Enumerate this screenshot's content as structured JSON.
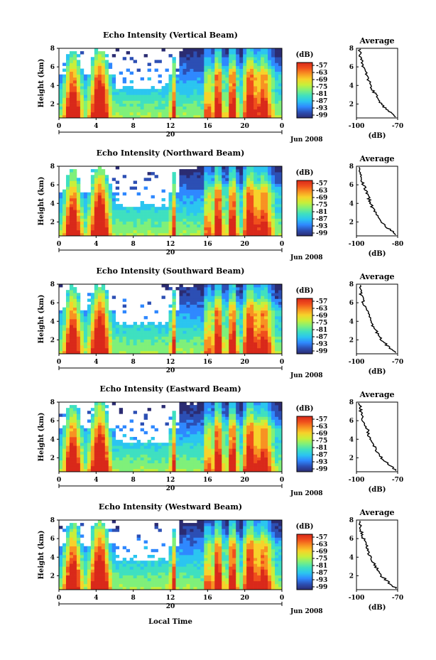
{
  "figure": {
    "xlabel": "Local Time",
    "ylabel": "Height (km)",
    "date_label": "Jun 2008",
    "day_label": "20",
    "colorbar_unit": "(dB)",
    "average_title": "Average",
    "average_xlabel": "(dB)"
  },
  "colormap": [
    "#2b2c72",
    "#2c4fb4",
    "#2f88ff",
    "#2bc5f0",
    "#3fe0c0",
    "#7ff07a",
    "#c8ef3a",
    "#f7d22a",
    "#f89222",
    "#f04f1c",
    "#d9291a"
  ],
  "chart_data": [
    {
      "type": "heatmap",
      "title": "Echo Intensity (Vertical Beam)",
      "xlabel": "Local Time",
      "ylabel": "Height (km)",
      "x_ticks": [
        "0",
        "4",
        "8",
        "12",
        "16",
        "20",
        "0"
      ],
      "xlim": [
        0,
        24
      ],
      "y_ticks": [
        "2",
        "4",
        "6",
        "8"
      ],
      "ylim": [
        0.5,
        8
      ],
      "colorbar_label": "(dB)",
      "colorbar_ticks": [
        "-57",
        "-63",
        "-69",
        "-75",
        "-81",
        "-87",
        "-93",
        "-99"
      ],
      "clim": [
        -99,
        -57
      ],
      "average_profile": {
        "title": "Average",
        "xlabel": "(dB)",
        "x_ticks": [
          "-100",
          "-70"
        ],
        "xlim": [
          -100,
          -70
        ],
        "y_ticks": [
          "2",
          "4",
          "6",
          "8"
        ],
        "ylim": [
          0.5,
          8
        ],
        "height": [
          0.6,
          1.2,
          2,
          3,
          4,
          5,
          6,
          7,
          8
        ],
        "db": [
          -71,
          -76,
          -82,
          -86,
          -90,
          -92,
          -95,
          -97,
          -98
        ]
      }
    },
    {
      "type": "heatmap",
      "title": "Echo Intensity (Northward Beam)",
      "xlabel": "Local Time",
      "ylabel": "Height (km)",
      "x_ticks": [
        "0",
        "4",
        "8",
        "12",
        "16",
        "20",
        "0"
      ],
      "xlim": [
        0,
        24
      ],
      "y_ticks": [
        "2",
        "4",
        "6",
        "8"
      ],
      "ylim": [
        0.5,
        8
      ],
      "colorbar_label": "(dB)",
      "colorbar_ticks": [
        "-57",
        "-63",
        "-69",
        "-75",
        "-81",
        "-87",
        "-93",
        "-99"
      ],
      "clim": [
        -99,
        -57
      ],
      "average_profile": {
        "title": "Average",
        "xlabel": "(dB)",
        "x_ticks": [
          "-100",
          "-80"
        ],
        "xlim": [
          -100,
          -70
        ],
        "y_ticks": [
          "2",
          "4",
          "6",
          "8"
        ],
        "ylim": [
          0.5,
          8
        ],
        "height": [
          0.6,
          1.2,
          2,
          3,
          4,
          5,
          6,
          7,
          8
        ],
        "db": [
          -71,
          -76,
          -82,
          -86,
          -90,
          -92,
          -95,
          -97,
          -98
        ]
      }
    },
    {
      "type": "heatmap",
      "title": "Echo Intensity (Southward Beam)",
      "xlabel": "Local Time",
      "ylabel": "Height (km)",
      "x_ticks": [
        "0",
        "4",
        "8",
        "12",
        "16",
        "20",
        "0"
      ],
      "xlim": [
        0,
        24
      ],
      "y_ticks": [
        "2",
        "4",
        "6",
        "8"
      ],
      "ylim": [
        0.5,
        8
      ],
      "colorbar_label": "(dB)",
      "colorbar_ticks": [
        "-57",
        "-63",
        "-69",
        "-75",
        "-81",
        "-87",
        "-93",
        "-99"
      ],
      "clim": [
        -99,
        -57
      ],
      "average_profile": {
        "title": "Average",
        "xlabel": "(dB)",
        "x_ticks": [
          "-100",
          "-70"
        ],
        "xlim": [
          -100,
          -70
        ],
        "y_ticks": [
          "2",
          "4",
          "6",
          "8"
        ],
        "ylim": [
          0.5,
          8
        ],
        "height": [
          0.6,
          1.2,
          2,
          3,
          4,
          5,
          6,
          7,
          8
        ],
        "db": [
          -71,
          -76,
          -82,
          -86,
          -90,
          -92,
          -95,
          -97,
          -98
        ]
      }
    },
    {
      "type": "heatmap",
      "title": "Echo Intensity (Eastward Beam)",
      "xlabel": "Local Time",
      "ylabel": "Height (km)",
      "x_ticks": [
        "0",
        "4",
        "8",
        "12",
        "16",
        "20",
        "0"
      ],
      "xlim": [
        0,
        24
      ],
      "y_ticks": [
        "2",
        "4",
        "6",
        "8"
      ],
      "ylim": [
        0.5,
        8
      ],
      "colorbar_label": "(dB)",
      "colorbar_ticks": [
        "-57",
        "-63",
        "-69",
        "-75",
        "-81",
        "-87",
        "-93",
        "-99"
      ],
      "clim": [
        -99,
        -57
      ],
      "average_profile": {
        "title": "Average",
        "xlabel": "(dB)",
        "x_ticks": [
          "-100",
          "-70"
        ],
        "xlim": [
          -100,
          -70
        ],
        "y_ticks": [
          "2",
          "4",
          "6",
          "8"
        ],
        "ylim": [
          0.5,
          8
        ],
        "height": [
          0.6,
          1.2,
          2,
          3,
          4,
          5,
          6,
          7,
          8
        ],
        "db": [
          -71,
          -76,
          -82,
          -86,
          -90,
          -92,
          -95,
          -97,
          -98
        ]
      }
    },
    {
      "type": "heatmap",
      "title": "Echo Intensity (Westward Beam)",
      "xlabel": "Local Time",
      "ylabel": "Height (km)",
      "x_ticks": [
        "0",
        "4",
        "8",
        "12",
        "16",
        "20",
        "0"
      ],
      "xlim": [
        0,
        24
      ],
      "y_ticks": [
        "2",
        "4",
        "6",
        "8"
      ],
      "ylim": [
        0.5,
        8
      ],
      "colorbar_label": "(dB)",
      "colorbar_ticks": [
        "-57",
        "-63",
        "-69",
        "-75",
        "-81",
        "-87",
        "-93",
        "-99"
      ],
      "clim": [
        -99,
        -57
      ],
      "average_profile": {
        "title": "Average",
        "xlabel": "(dB)",
        "x_ticks": [
          "-100",
          "-70"
        ],
        "xlim": [
          -100,
          -70
        ],
        "y_ticks": [
          "2",
          "4",
          "6",
          "8"
        ],
        "ylim": [
          0.5,
          8
        ],
        "height": [
          0.6,
          1.2,
          2,
          3,
          4,
          5,
          6,
          7,
          8
        ],
        "db": [
          -71,
          -76,
          -82,
          -86,
          -90,
          -92,
          -95,
          -97,
          -98
        ]
      }
    }
  ]
}
